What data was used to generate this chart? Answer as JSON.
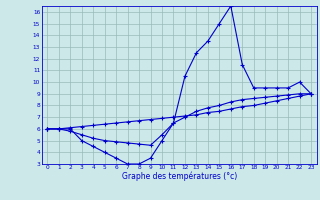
{
  "x_hours": [
    0,
    1,
    2,
    3,
    4,
    5,
    6,
    7,
    8,
    9,
    10,
    11,
    12,
    13,
    14,
    15,
    16,
    17,
    18,
    19,
    20,
    21,
    22,
    23
  ],
  "temp_curve": [
    6,
    6,
    6,
    5,
    4.5,
    4,
    3.5,
    3,
    3,
    3.5,
    5,
    6.5,
    10.5,
    12.5,
    13.5,
    15,
    16.5,
    11.5,
    9.5,
    9.5,
    9.5,
    9.5,
    10,
    9
  ],
  "line2": [
    6,
    6,
    5.8,
    5.5,
    5.2,
    5.0,
    4.9,
    4.8,
    4.7,
    4.6,
    5.5,
    6.5,
    7.0,
    7.5,
    7.8,
    8.0,
    8.3,
    8.5,
    8.6,
    8.7,
    8.8,
    8.9,
    9.0,
    9.0
  ],
  "line3": [
    6,
    6.0,
    6.1,
    6.2,
    6.3,
    6.4,
    6.5,
    6.6,
    6.7,
    6.8,
    6.9,
    7.0,
    7.1,
    7.2,
    7.4,
    7.5,
    7.7,
    7.9,
    8.0,
    8.2,
    8.4,
    8.6,
    8.8,
    9.0
  ],
  "xlim": [
    -0.5,
    23.5
  ],
  "ylim": [
    3,
    16.5
  ],
  "yticks": [
    3,
    4,
    5,
    6,
    7,
    8,
    9,
    10,
    11,
    12,
    13,
    14,
    15,
    16
  ],
  "xticks": [
    0,
    1,
    2,
    3,
    4,
    5,
    6,
    7,
    8,
    9,
    10,
    11,
    12,
    13,
    14,
    15,
    16,
    17,
    18,
    19,
    20,
    21,
    22,
    23
  ],
  "xlabel": "Graphe des températures (°c)",
  "line_color": "#0000cc",
  "bg_color": "#cce8e8",
  "grid_color": "#99bbbb",
  "marker": "+",
  "marker_size": 3,
  "linewidth": 0.8,
  "tick_fontsize": 4.2,
  "xlabel_fontsize": 5.5
}
